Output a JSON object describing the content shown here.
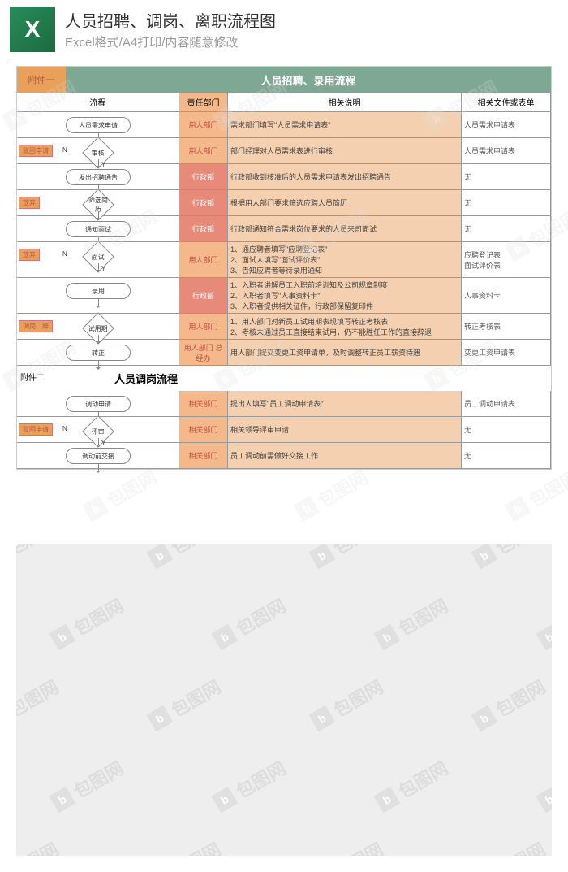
{
  "header": {
    "title": "人员招聘、调岗、离职流程图",
    "subtitle": "Excel格式/A4打印/内容随意修改",
    "icon_letter": "X"
  },
  "section1": {
    "attach_label": "附件一",
    "title": "人员招聘、录用流程",
    "columns": {
      "flow": "流程",
      "dept": "责任部门",
      "desc": "相关说明",
      "doc": "相关文件或表单"
    },
    "rows": [
      {
        "flow": "人员需求申请",
        "dept": "用人部门",
        "desc": "需求部门填写\"人员需求申请表\"",
        "doc": "人员需求申请表",
        "dept_style": "A"
      },
      {
        "flow": "审核",
        "dept": "用人部门",
        "desc": "部门经理对人员需求表进行审核",
        "doc": "人员需求申请表",
        "dept_style": "A",
        "side": "驳回申请",
        "yn": "N"
      },
      {
        "flow": "发出招聘通告",
        "dept": "行政部",
        "desc": "行政部收到核准后的人员需求申请表发出招聘通告",
        "doc": "无",
        "dept_style": "B"
      },
      {
        "flow": "筛选简历",
        "dept": "行政部",
        "desc": "根据用人部门要求筛选应聘人员简历",
        "doc": "无",
        "dept_style": "B",
        "side": "放弃"
      },
      {
        "flow": "通知面试",
        "dept": "行政部",
        "desc": "行政部通知符合需求岗位要求的人员来司面试",
        "doc": "无",
        "dept_style": "B"
      },
      {
        "flow": "面试",
        "dept": "用人部门",
        "desc": "1、通应聘者填写\"应聘登记表\"\n2、面试人填写\"面试评价表\"\n3、告知应聘者等待录用通知",
        "doc": "应聘登记表\n面试评价表",
        "dept_style": "A",
        "side": "放弃",
        "yn": "N"
      },
      {
        "flow": "录用",
        "dept": "行政部",
        "desc": "1、入职者讲解员工入职前培训知及公司规章制度\n2、入职者填写\"人事资料卡\"\n3、入职者提供相关证件，行政部保留复印件",
        "doc": "人事资料卡",
        "dept_style": "B"
      },
      {
        "flow": "试用期",
        "dept": "用人部门",
        "desc": "1、用人部门对新员工试用期表现填写转正考核表\n2、考核未通过员工直接结束试用，仍不能胜任工作的直接辞退",
        "doc": "转正考核表",
        "dept_style": "A",
        "side": "调岗、辞"
      },
      {
        "flow": "转正",
        "dept": "用人部门\n总经办",
        "desc": "用人部门提交变更工资申请单，及时调整转正员工薪资待遇",
        "doc": "变更工资申请表",
        "dept_style": "A"
      }
    ]
  },
  "section2": {
    "attach_label": "附件二",
    "title": "人员调岗流程",
    "rows": [
      {
        "flow": "调动申请",
        "dept": "相关部门",
        "desc": "提出人填写\"员工调动申请表\"",
        "doc": "员工调动申请表"
      },
      {
        "flow": "评审",
        "dept": "相关部门",
        "desc": "相关领导评审申请",
        "doc": "无",
        "side": "驳回申请",
        "yn": "N"
      },
      {
        "flow": "调动前交接",
        "dept": "相关部门",
        "desc": "员工调动前需做好交接工作",
        "doc": "无"
      }
    ]
  },
  "watermark": {
    "text": "包图网",
    "brand": "b"
  },
  "colors": {
    "banner": "#7ea894",
    "dept_a": "#f5b88a",
    "dept_b": "#e88a7a",
    "desc_bg": "#f5d0b0",
    "tag": "#e8a05a"
  }
}
